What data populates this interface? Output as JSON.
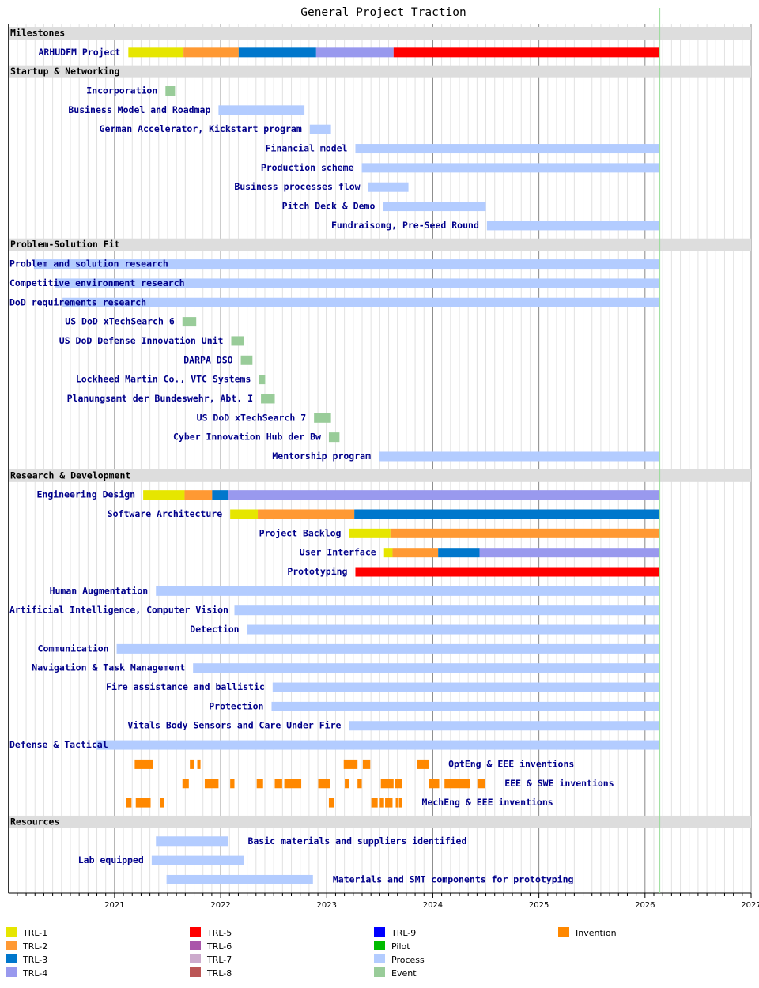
{
  "chart_data": {
    "type": "gantt",
    "title": "General Project Traction",
    "xlim": [
      2020,
      2027
    ],
    "xticks": [
      2021,
      2022,
      2023,
      2024,
      2025,
      2026,
      2027
    ],
    "today": 2026.14,
    "legend": [
      {
        "name": "TRL-1",
        "color": "#e6e600"
      },
      {
        "name": "TRL-2",
        "color": "#ff9933"
      },
      {
        "name": "TRL-3",
        "color": "#0077cc"
      },
      {
        "name": "TRL-4",
        "color": "#9999ee"
      },
      {
        "name": "TRL-5",
        "color": "#ff0000"
      },
      {
        "name": "TRL-6",
        "color": "#aa55aa"
      },
      {
        "name": "TRL-7",
        "color": "#ccaacc"
      },
      {
        "name": "TRL-8",
        "color": "#bb5555"
      },
      {
        "name": "TRL-9",
        "color": "#0000ff"
      },
      {
        "name": "Pilot",
        "color": "#00bb00"
      },
      {
        "name": "Process",
        "color": "#b3ccff"
      },
      {
        "name": "Event",
        "color": "#99cc99"
      },
      {
        "name": "Invention",
        "color": "#ff8800"
      }
    ],
    "sections": [
      {
        "name": "Milestones",
        "rows": [
          {
            "label": "ARHUDFM Project",
            "tasks": [
              {
                "kind": "TRL-1",
                "start": 2021.13,
                "end": 2021.65
              },
              {
                "kind": "TRL-2",
                "start": 2021.65,
                "end": 2022.17
              },
              {
                "kind": "TRL-3",
                "start": 2022.17,
                "end": 2022.9
              },
              {
                "kind": "TRL-4",
                "start": 2022.9,
                "end": 2023.63
              },
              {
                "kind": "TRL-5",
                "start": 2023.63,
                "end": 2026.13
              }
            ]
          }
        ]
      },
      {
        "name": "Startup & Networking",
        "rows": [
          {
            "label": "Incorporation",
            "tasks": [
              {
                "kind": "Event",
                "start": 2021.48,
                "end": 2021.57
              }
            ]
          },
          {
            "label": "Business Model and Roadmap",
            "tasks": [
              {
                "kind": "Process",
                "start": 2021.98,
                "end": 2022.79
              }
            ]
          },
          {
            "label": "German Accelerator, Kickstart program",
            "tasks": [
              {
                "kind": "Process",
                "start": 2022.84,
                "end": 2023.04
              }
            ]
          },
          {
            "label": "Financial model",
            "tasks": [
              {
                "kind": "Process",
                "start": 2023.27,
                "end": 2026.13
              }
            ]
          },
          {
            "label": "Production scheme",
            "tasks": [
              {
                "kind": "Process",
                "start": 2023.33,
                "end": 2026.13
              }
            ]
          },
          {
            "label": "Business processes flow",
            "tasks": [
              {
                "kind": "Process",
                "start": 2023.39,
                "end": 2023.77
              }
            ]
          },
          {
            "label": "Pitch Deck & Demo",
            "tasks": [
              {
                "kind": "Process",
                "start": 2023.53,
                "end": 2024.5
              }
            ]
          },
          {
            "label": "Fundraisong, Pre-Seed Round",
            "tasks": [
              {
                "kind": "Process",
                "start": 2024.51,
                "end": 2026.13
              }
            ]
          }
        ]
      },
      {
        "name": "Problem-Solution Fit",
        "rows": [
          {
            "label": "Problem and solution research",
            "tasks": [
              {
                "kind": "Process",
                "start": 2020.24,
                "end": 2026.13
              }
            ]
          },
          {
            "label": "Competitive environment research",
            "tasks": [
              {
                "kind": "Process",
                "start": 2020.44,
                "end": 2026.13
              }
            ]
          },
          {
            "label": "DoD requirements research",
            "tasks": [
              {
                "kind": "Process",
                "start": 2020.51,
                "end": 2026.13
              }
            ]
          },
          {
            "label": "US DoD xTechSearch 6",
            "tasks": [
              {
                "kind": "Event",
                "start": 2021.64,
                "end": 2021.77
              }
            ]
          },
          {
            "label": "US DoD Defense Innovation Unit",
            "tasks": [
              {
                "kind": "Event",
                "start": 2022.1,
                "end": 2022.22
              }
            ]
          },
          {
            "label": "DARPA DSO",
            "tasks": [
              {
                "kind": "Event",
                "start": 2022.19,
                "end": 2022.3
              }
            ]
          },
          {
            "label": "Lockheed Martin Co., VTC Systems",
            "tasks": [
              {
                "kind": "Event",
                "start": 2022.36,
                "end": 2022.42
              }
            ]
          },
          {
            "label": "Planungsamt der Bundeswehr, Abt. I",
            "tasks": [
              {
                "kind": "Event",
                "start": 2022.38,
                "end": 2022.51
              }
            ]
          },
          {
            "label": "US DoD xTechSearch 7",
            "tasks": [
              {
                "kind": "Event",
                "start": 2022.88,
                "end": 2023.04
              }
            ]
          },
          {
            "label": "Cyber Innovation Hub der Bw",
            "tasks": [
              {
                "kind": "Event",
                "start": 2023.02,
                "end": 2023.12
              }
            ]
          },
          {
            "label": "Mentorship program",
            "tasks": [
              {
                "kind": "Process",
                "start": 2023.49,
                "end": 2026.13
              }
            ]
          }
        ]
      },
      {
        "name": "Research & Development",
        "rows": [
          {
            "label": "Engineering Design",
            "tasks": [
              {
                "kind": "TRL-1",
                "start": 2021.27,
                "end": 2021.66
              },
              {
                "kind": "TRL-2",
                "start": 2021.66,
                "end": 2021.92
              },
              {
                "kind": "TRL-3",
                "start": 2021.92,
                "end": 2022.07
              },
              {
                "kind": "TRL-4",
                "start": 2022.07,
                "end": 2026.13
              }
            ]
          },
          {
            "label": "Software Architecture",
            "tasks": [
              {
                "kind": "TRL-1",
                "start": 2022.09,
                "end": 2022.35
              },
              {
                "kind": "TRL-2",
                "start": 2022.35,
                "end": 2023.26
              },
              {
                "kind": "TRL-3",
                "start": 2023.26,
                "end": 2026.13
              }
            ]
          },
          {
            "label": "Project Backlog",
            "tasks": [
              {
                "kind": "TRL-1",
                "start": 2023.21,
                "end": 2023.6
              },
              {
                "kind": "TRL-2",
                "start": 2023.6,
                "end": 2026.13
              }
            ]
          },
          {
            "label": "User Interface",
            "tasks": [
              {
                "kind": "TRL-1",
                "start": 2023.54,
                "end": 2023.62
              },
              {
                "kind": "TRL-2",
                "start": 2023.62,
                "end": 2024.05
              },
              {
                "kind": "TRL-3",
                "start": 2024.05,
                "end": 2024.44
              },
              {
                "kind": "TRL-4",
                "start": 2024.44,
                "end": 2026.13
              }
            ]
          },
          {
            "label": "Prototyping",
            "tasks": [
              {
                "kind": "TRL-5",
                "start": 2023.27,
                "end": 2026.13
              }
            ]
          },
          {
            "label": "Human Augmentation",
            "tasks": [
              {
                "kind": "Process",
                "start": 2021.39,
                "end": 2026.13
              }
            ]
          },
          {
            "label": "Artificial Intelligence, Computer Vision",
            "tasks": [
              {
                "kind": "Process",
                "start": 2022.13,
                "end": 2026.13
              }
            ]
          },
          {
            "label": "Detection",
            "tasks": [
              {
                "kind": "Process",
                "start": 2022.25,
                "end": 2026.13
              }
            ]
          },
          {
            "label": "Communication",
            "tasks": [
              {
                "kind": "Process",
                "start": 2021.02,
                "end": 2026.13
              }
            ]
          },
          {
            "label": "Navigation & Task Management",
            "tasks": [
              {
                "kind": "Process",
                "start": 2021.74,
                "end": 2026.13
              }
            ]
          },
          {
            "label": "Fire assistance and ballistic",
            "tasks": [
              {
                "kind": "Process",
                "start": 2022.49,
                "end": 2026.13
              }
            ]
          },
          {
            "label": "Protection",
            "tasks": [
              {
                "kind": "Process",
                "start": 2022.48,
                "end": 2026.13
              }
            ]
          },
          {
            "label": "Vitals Body Sensors and Care Under Fire",
            "tasks": [
              {
                "kind": "Process",
                "start": 2023.21,
                "end": 2026.13
              }
            ]
          },
          {
            "label": "Defense & Tactical",
            "tasks": [
              {
                "kind": "Process",
                "start": 2020.83,
                "end": 2026.13
              }
            ]
          },
          {
            "label": "OptEng & EEE inventions",
            "tasks": [
              {
                "kind": "Invention",
                "start": 2021.19,
                "end": 2021.36
              },
              {
                "kind": "Invention",
                "start": 2021.71,
                "end": 2021.75
              },
              {
                "kind": "Invention",
                "start": 2021.78,
                "end": 2021.81
              },
              {
                "kind": "Invention",
                "start": 2023.16,
                "end": 2023.29
              },
              {
                "kind": "Invention",
                "start": 2023.34,
                "end": 2023.41
              },
              {
                "kind": "Invention",
                "start": 2023.85,
                "end": 2023.96
              }
            ]
          },
          {
            "label": "EEE & SWE inventions",
            "tasks": [
              {
                "kind": "Invention",
                "start": 2021.64,
                "end": 2021.7
              },
              {
                "kind": "Invention",
                "start": 2021.85,
                "end": 2021.98
              },
              {
                "kind": "Invention",
                "start": 2022.09,
                "end": 2022.13
              },
              {
                "kind": "Invention",
                "start": 2022.34,
                "end": 2022.4
              },
              {
                "kind": "Invention",
                "start": 2022.51,
                "end": 2022.58
              },
              {
                "kind": "Invention",
                "start": 2022.6,
                "end": 2022.76
              },
              {
                "kind": "Invention",
                "start": 2022.92,
                "end": 2023.03
              },
              {
                "kind": "Invention",
                "start": 2023.17,
                "end": 2023.21
              },
              {
                "kind": "Invention",
                "start": 2023.29,
                "end": 2023.33
              },
              {
                "kind": "Invention",
                "start": 2023.51,
                "end": 2023.63
              },
              {
                "kind": "Invention",
                "start": 2023.64,
                "end": 2023.71
              },
              {
                "kind": "Invention",
                "start": 2023.96,
                "end": 2024.06
              },
              {
                "kind": "Invention",
                "start": 2024.11,
                "end": 2024.35
              },
              {
                "kind": "Invention",
                "start": 2024.42,
                "end": 2024.49
              }
            ]
          },
          {
            "label": "MechEng & EEE inventions",
            "tasks": [
              {
                "kind": "Invention",
                "start": 2021.11,
                "end": 2021.16
              },
              {
                "kind": "Invention",
                "start": 2021.2,
                "end": 2021.34
              },
              {
                "kind": "Invention",
                "start": 2021.43,
                "end": 2021.47
              },
              {
                "kind": "Invention",
                "start": 2023.02,
                "end": 2023.07
              },
              {
                "kind": "Invention",
                "start": 2023.42,
                "end": 2023.48
              },
              {
                "kind": "Invention",
                "start": 2023.5,
                "end": 2023.54
              },
              {
                "kind": "Invention",
                "start": 2023.55,
                "end": 2023.62
              },
              {
                "kind": "Invention",
                "start": 2023.65,
                "end": 2023.67
              },
              {
                "kind": "Invention",
                "start": 2023.68,
                "end": 2023.71
              }
            ]
          }
        ]
      },
      {
        "name": "Resources",
        "rows": [
          {
            "label": "Basic materials and suppliers identified",
            "tasks": [
              {
                "kind": "Process",
                "start": 2021.39,
                "end": 2022.07
              }
            ]
          },
          {
            "label": "Lab equipped",
            "tasks": [
              {
                "kind": "Process",
                "start": 2021.35,
                "end": 2022.22
              }
            ]
          },
          {
            "label": "Materials and SMT components for prototyping",
            "tasks": [
              {
                "kind": "Process",
                "start": 2021.49,
                "end": 2022.87
              }
            ]
          }
        ]
      }
    ]
  }
}
